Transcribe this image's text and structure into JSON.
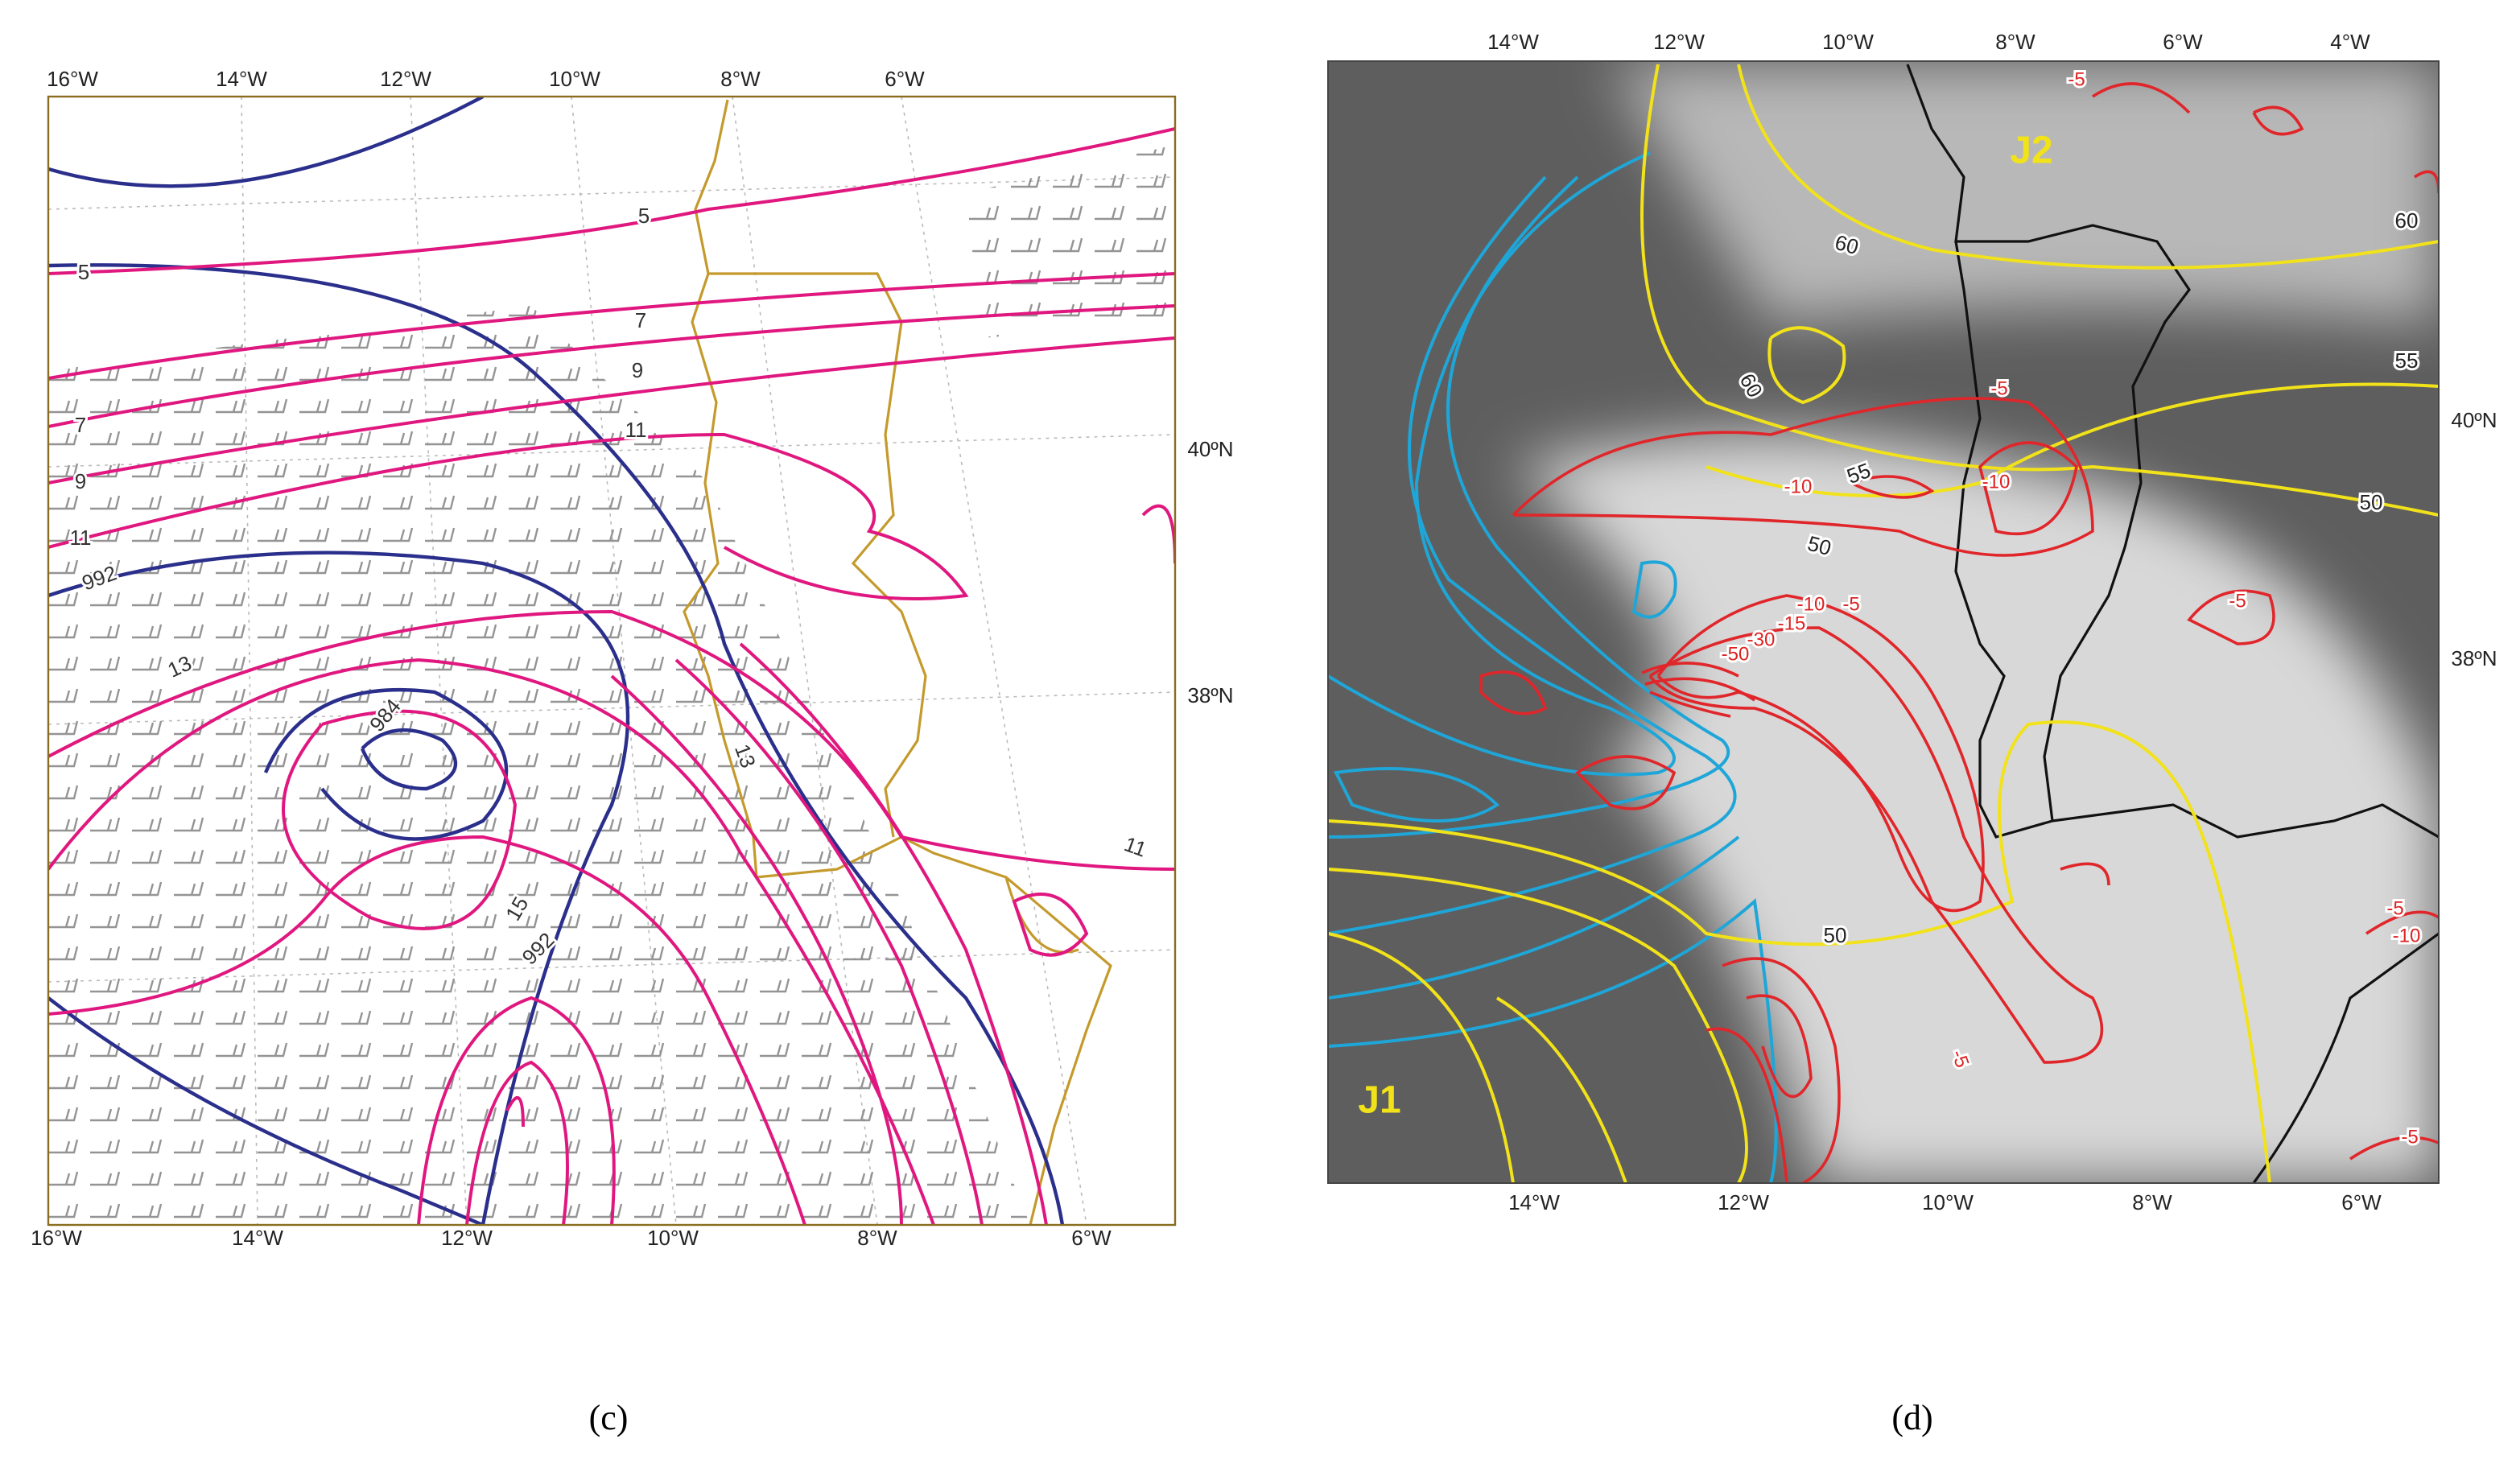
{
  "panels": [
    {
      "caption": "(c)",
      "top_labels": [
        "16°W",
        "14°W",
        "12°W",
        "10°W",
        "8°W",
        "6°W"
      ],
      "bottom_labels": [
        "16°W",
        "14°W",
        "12°W",
        "10°W",
        "8°W",
        "6°W"
      ],
      "right_labels": [
        "40ºN",
        "38ºN"
      ],
      "contour_labels": [
        "5",
        "5",
        "7",
        "9",
        "11",
        "7",
        "9",
        "11",
        "992",
        "13",
        "984",
        "13",
        "15",
        "992",
        "11"
      ]
    },
    {
      "caption": "(d)",
      "top_labels": [
        "14°W",
        "12°W",
        "10°W",
        "8°W",
        "6°W",
        "4°W"
      ],
      "bottom_labels": [
        "14°W",
        "12°W",
        "10°W",
        "8°W",
        "6°W"
      ],
      "right_labels": [
        "40ºN",
        "38ºN"
      ],
      "region_labels": [
        "J1",
        "J2"
      ],
      "contour_labels": [
        "60",
        "60",
        "60",
        "55",
        "55",
        "50",
        "50",
        "-10",
        "-10",
        "-5",
        "-5",
        "-10",
        "-5",
        "-15",
        "-30",
        "-50",
        "-5",
        "50",
        "-5",
        "-5",
        "-10",
        "-5"
      ]
    }
  ]
}
